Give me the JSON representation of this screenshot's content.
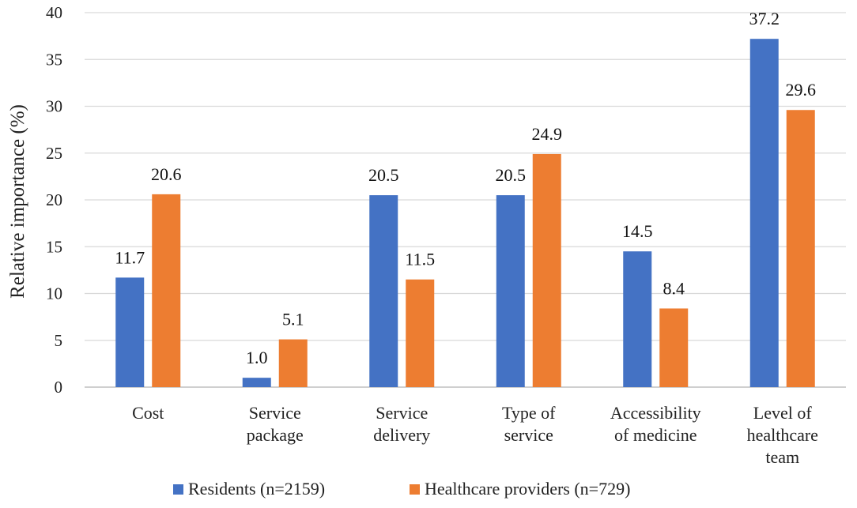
{
  "chart_data": {
    "type": "bar",
    "title": "",
    "xlabel": "",
    "ylabel": "Relative importance (%)",
    "ylim": [
      0,
      40
    ],
    "yticks": [
      0,
      5,
      10,
      15,
      20,
      25,
      30,
      35,
      40
    ],
    "grid": true,
    "legend_position": "bottom",
    "categories": [
      [
        "Cost"
      ],
      [
        "Service",
        "package"
      ],
      [
        "Service",
        "delivery"
      ],
      [
        "Type of",
        "service"
      ],
      [
        "Accessibility",
        "of medicine"
      ],
      [
        "Level of",
        "healthcare",
        "team"
      ]
    ],
    "series": [
      {
        "name": "Residents (n=2159)",
        "color": "#4472c4",
        "values": [
          11.7,
          1.0,
          20.5,
          20.5,
          14.5,
          37.2
        ],
        "labels": [
          "11.7",
          "1.0",
          "20.5",
          "20.5",
          "14.5",
          "37.2"
        ]
      },
      {
        "name": "Healthcare providers (n=729)",
        "color": "#ed7d31",
        "values": [
          20.6,
          5.1,
          11.5,
          24.9,
          8.4,
          29.6
        ],
        "labels": [
          "20.6",
          "5.1",
          "11.5",
          "24.9",
          "8.4",
          "29.6"
        ]
      }
    ]
  }
}
